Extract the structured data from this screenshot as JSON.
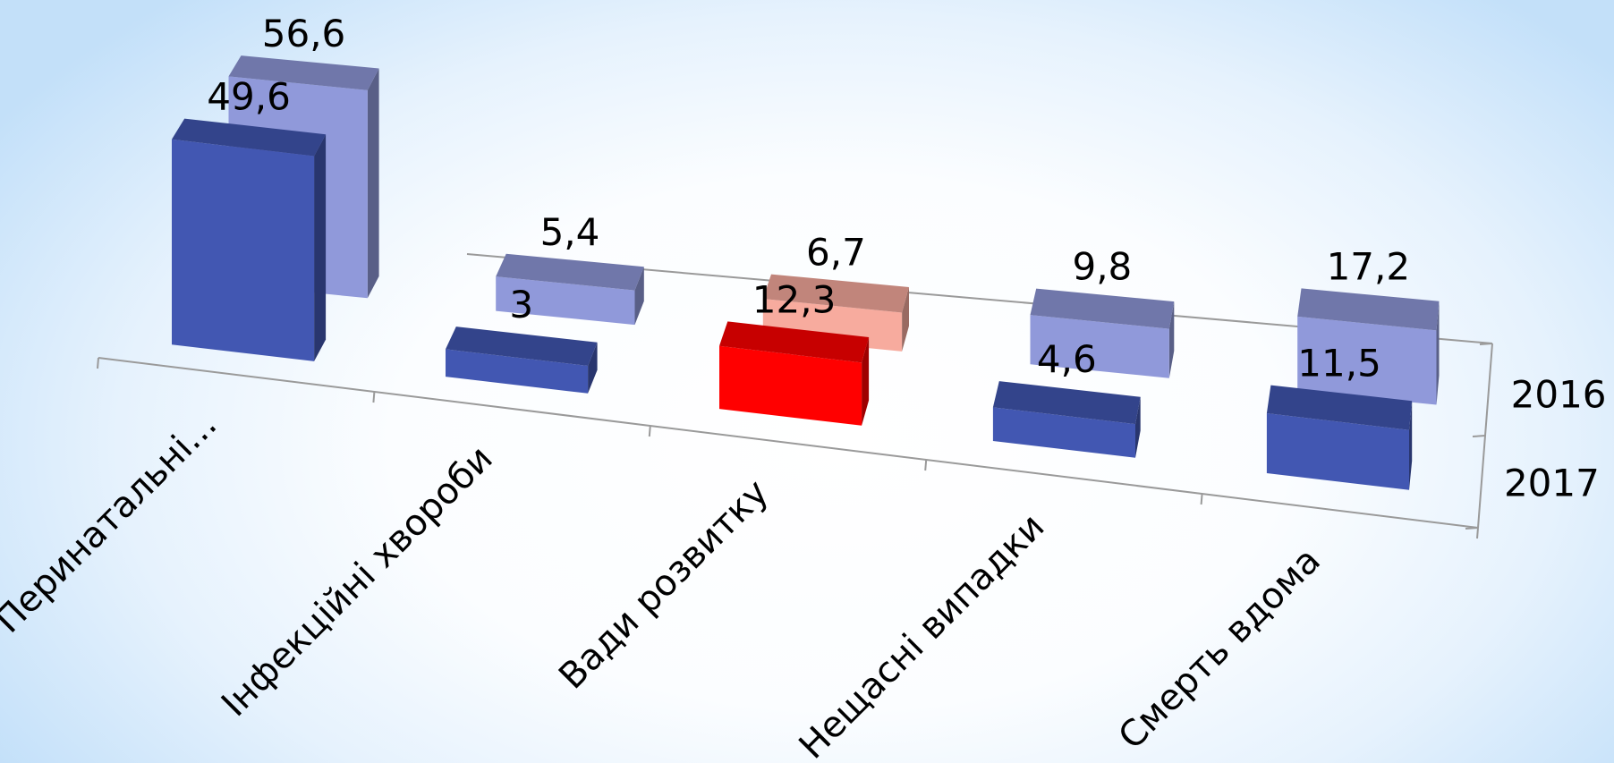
{
  "chart_data": {
    "type": "bar",
    "style": "3d-clustered-column",
    "categories": [
      "Перинатальні...",
      "Інфекційні хвороби",
      "Вади розвитку",
      "Нещасні випадки",
      "Смерть вдома"
    ],
    "series": [
      {
        "name": "2016",
        "values": [
          56.6,
          5.4,
          6.7,
          9.8,
          17.2
        ],
        "labels": [
          "56,6",
          "5,4",
          "6,7",
          "9,8",
          "17,2"
        ],
        "color": "#9099da",
        "highlight": {
          "index": 2,
          "color": "#f7ab9e"
        }
      },
      {
        "name": "2017",
        "values": [
          49.6,
          3,
          12.3,
          4.6,
          11.5
        ],
        "labels": [
          "49,6",
          "3",
          "12,3",
          "4,6",
          "11,5"
        ],
        "color": "#4257b2",
        "highlight": {
          "index": 2,
          "color": "#ff0000"
        }
      }
    ],
    "legend": "depth-axis-right",
    "grid": false
  }
}
